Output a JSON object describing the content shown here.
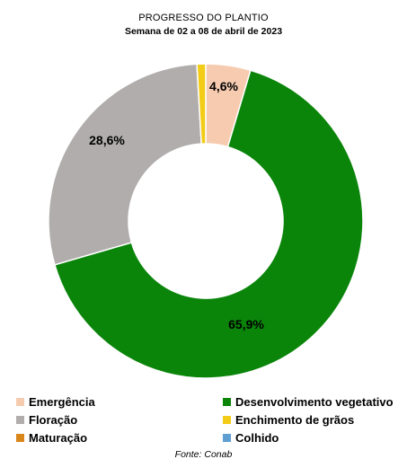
{
  "chart_data": {
    "type": "pie",
    "title": "PROGRESSO DO PLANTIO",
    "subtitle": "Semana de 02 a 08 de abril de 2023",
    "source": "Fonte: Conab",
    "legend_position": "bottom",
    "slices": [
      {
        "name": "Emergência",
        "value": 4.6,
        "label": "4,6%",
        "color": "#f6cbb0"
      },
      {
        "name": "Desenvolvimento vegetativo",
        "value": 65.9,
        "label": "65,9%",
        "color": "#0a850a"
      },
      {
        "name": "Floração",
        "value": 28.6,
        "label": "28,6%",
        "color": "#b1adad"
      },
      {
        "name": "Enchimento de grãos",
        "value": 0.9,
        "label": "",
        "color": "#f2cc16"
      },
      {
        "name": "Maturação",
        "value": 0,
        "label": "",
        "color": "#d9871b"
      },
      {
        "name": "Colhido",
        "value": 0,
        "label": "",
        "color": "#5f9ed1"
      }
    ]
  }
}
